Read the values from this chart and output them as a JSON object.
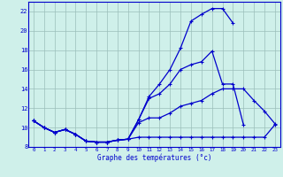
{
  "title": "Graphe des températures (°c)",
  "background_color": "#cff0ea",
  "line_color": "#0000cc",
  "grid_color": "#9bbfba",
  "xlim": [
    -0.5,
    23.5
  ],
  "ylim": [
    8,
    23
  ],
  "yticks": [
    8,
    10,
    12,
    14,
    16,
    18,
    20,
    22
  ],
  "xticks": [
    0,
    1,
    2,
    3,
    4,
    5,
    6,
    7,
    8,
    9,
    10,
    11,
    12,
    13,
    14,
    15,
    16,
    17,
    18,
    19,
    20,
    21,
    22,
    23
  ],
  "series": [
    [
      10.7,
      10.0,
      9.5,
      9.8,
      9.3,
      8.6,
      8.5,
      8.5,
      8.7,
      8.8,
      9.0,
      9.0,
      9.0,
      9.0,
      9.0,
      9.0,
      9.0,
      9.0,
      9.0,
      9.0,
      9.0,
      9.0,
      9.0,
      10.3
    ],
    [
      10.7,
      10.0,
      9.5,
      9.8,
      9.3,
      8.6,
      8.5,
      8.5,
      8.7,
      8.8,
      10.5,
      11.0,
      11.0,
      11.5,
      12.2,
      12.5,
      12.8,
      13.5,
      14.0,
      14.0,
      14.0,
      12.8,
      11.7,
      10.4
    ],
    [
      10.7,
      10.0,
      9.5,
      9.8,
      9.3,
      8.6,
      8.5,
      8.5,
      8.7,
      8.8,
      10.8,
      13.0,
      13.5,
      14.5,
      16.0,
      16.5,
      16.8,
      17.9,
      14.5,
      14.5,
      10.3,
      null,
      null,
      null
    ],
    [
      10.7,
      10.0,
      9.5,
      9.8,
      9.3,
      8.6,
      8.5,
      8.5,
      8.7,
      8.8,
      10.8,
      13.2,
      14.5,
      16.0,
      18.2,
      21.0,
      21.7,
      22.3,
      22.3,
      20.8,
      null,
      null,
      null,
      null
    ]
  ]
}
